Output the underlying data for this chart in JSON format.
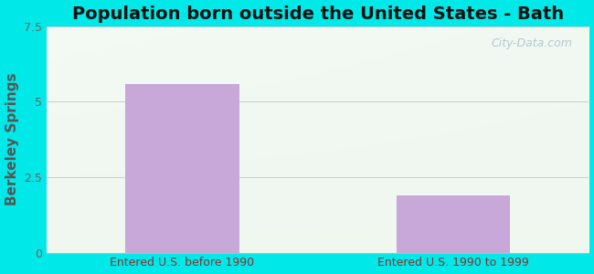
{
  "title": "Population born outside the United States - Bath",
  "categories": [
    "Entered U.S. before 1990",
    "Entered U.S. 1990 to 1999"
  ],
  "values": [
    5.6,
    1.9
  ],
  "bar_color": "#c8a8d8",
  "ylabel": "Berkeley Springs",
  "ylim": [
    0,
    7.5
  ],
  "yticks": [
    0,
    2.5,
    5,
    7.5
  ],
  "background_outer": "#00e8e8",
  "title_fontsize": 14,
  "ylabel_fontsize": 11,
  "tick_label_fontsize": 9,
  "bar_width": 0.42,
  "watermark": "City-Data.com",
  "ytick_color": "#666666",
  "xtick_color": "#883333",
  "ylabel_color": "#555555",
  "title_color": "#111111",
  "grid_color": "#cccccc"
}
